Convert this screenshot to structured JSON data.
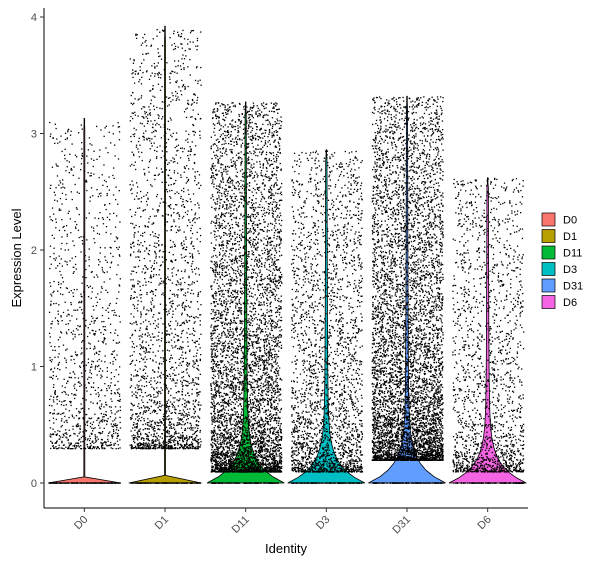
{
  "chart_data": {
    "type": "violin",
    "xlabel": "Identity",
    "ylabel": "Expression Level",
    "categories": [
      "D0",
      "D1",
      "D11",
      "D3",
      "D31",
      "D6"
    ],
    "yticks": [
      0,
      1,
      2,
      3,
      4
    ],
    "ylim": [
      -0.2,
      4.02
    ],
    "grid": false,
    "legend": {
      "position": "right",
      "entries": [
        "D0",
        "D1",
        "D11",
        "D3",
        "D31",
        "D6"
      ]
    },
    "colors": [
      "#F8766D",
      "#B79F00",
      "#00BA38",
      "#00BFC4",
      "#619CFF",
      "#F564E3"
    ],
    "series": [
      {
        "name": "D0",
        "max": 3.13,
        "zero_fraction_peak_width": 0.0,
        "nonzero_range": [
          0.3,
          3.1
        ],
        "nonzero_points": 1100
      },
      {
        "name": "D1",
        "max": 3.92,
        "zero_fraction_peak_width": 0.0,
        "nonzero_range": [
          0.3,
          3.9
        ],
        "nonzero_points": 2200
      },
      {
        "name": "D11",
        "max": 3.27,
        "zero_fraction_peak_width": 1.0,
        "nonzero_range": [
          0.1,
          3.27
        ],
        "nonzero_points": 5500
      },
      {
        "name": "D3",
        "max": 2.86,
        "zero_fraction_peak_width": 1.0,
        "nonzero_range": [
          0.1,
          2.86
        ],
        "nonzero_points": 2500
      },
      {
        "name": "D31",
        "max": 3.32,
        "zero_fraction_peak_width": 1.0,
        "nonzero_range": [
          0.2,
          3.32
        ],
        "nonzero_points": 6000
      },
      {
        "name": "D6",
        "max": 2.62,
        "zero_fraction_peak_width": 1.0,
        "nonzero_range": [
          0.1,
          2.62
        ],
        "nonzero_points": 1700
      }
    ]
  }
}
